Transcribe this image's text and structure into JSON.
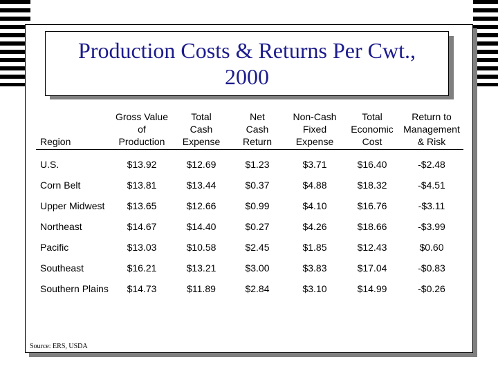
{
  "slide": {
    "title": "Production Costs & Returns Per Cwt.,\n2000",
    "source": "Source: ERS, USDA"
  },
  "table": {
    "headers": [
      "Region",
      "Gross Value\nof\nProduction",
      "Total\nCash\nExpense",
      "Net\nCash\nReturn",
      "Non-Cash\nFixed\nExpense",
      "Total\nEconomic\nCost",
      "Return to\nManagement\n& Risk"
    ],
    "rows": [
      [
        "U.S.",
        "$13.92",
        "$12.69",
        "$1.23",
        "$3.71",
        "$16.40",
        "-$2.48"
      ],
      [
        "Corn Belt",
        "$13.81",
        "$13.44",
        "$0.37",
        "$4.88",
        "$18.32",
        "-$4.51"
      ],
      [
        "Upper Midwest",
        "$13.65",
        "$12.66",
        "$0.99",
        "$4.10",
        "$16.76",
        "-$3.11"
      ],
      [
        "Northeast",
        "$14.67",
        "$14.40",
        "$0.27",
        "$4.26",
        "$18.66",
        "-$3.99"
      ],
      [
        "Pacific",
        "$13.03",
        "$10.58",
        "$2.45",
        "$1.85",
        "$12.43",
        "$0.60"
      ],
      [
        "Southeast",
        "$16.21",
        "$13.21",
        "$3.00",
        "$3.83",
        "$17.04",
        "-$0.83"
      ],
      [
        "Southern Plains",
        "$14.73",
        "$11.89",
        "$2.84",
        "$3.10",
        "$14.99",
        "-$0.26"
      ]
    ]
  }
}
